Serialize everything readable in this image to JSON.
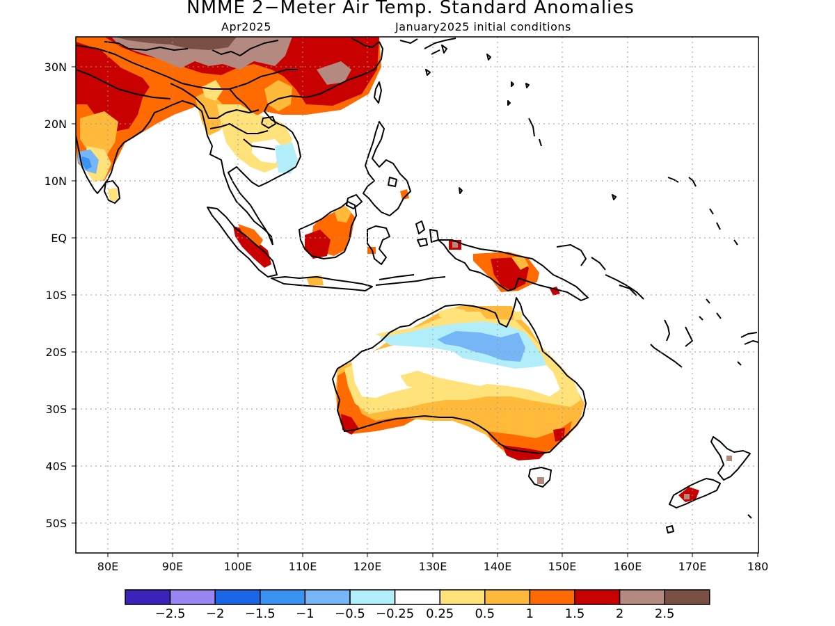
{
  "title": "NMME 2−Meter Air Temp. Standard Anomalies",
  "subtitle_left": "Apr2025",
  "subtitle_right": "January2025 initial conditions",
  "lat_labels": [
    "30N",
    "20N",
    "10N",
    "EQ",
    "10S",
    "20S",
    "30S",
    "40S",
    "50S"
  ],
  "lon_labels": [
    "80E",
    "90E",
    "100E",
    "110E",
    "120E",
    "130E",
    "140E",
    "150E",
    "160E",
    "170E",
    "180"
  ],
  "map_extent": {
    "lon_min": 75,
    "lon_max": 180,
    "lat_min": -55,
    "lat_max": 35
  },
  "colorbar": {
    "colors": [
      "#3b22b8",
      "#9a86f2",
      "#1a66e8",
      "#3a92f2",
      "#76b6f7",
      "#b2eefa",
      "#ffffff",
      "#ffe27a",
      "#ffba3c",
      "#ff6b00",
      "#c80000",
      "#b48a80",
      "#7a5044"
    ],
    "labels": [
      "−2.5",
      "−2",
      "−1.5",
      "−1",
      "−0.5",
      "−0.25",
      "0.25",
      "0.5",
      "1",
      "1.5",
      "2",
      "2.5"
    ]
  },
  "legend_colors": {
    "coast": "#000000",
    "grid": "#9a9a9a"
  }
}
